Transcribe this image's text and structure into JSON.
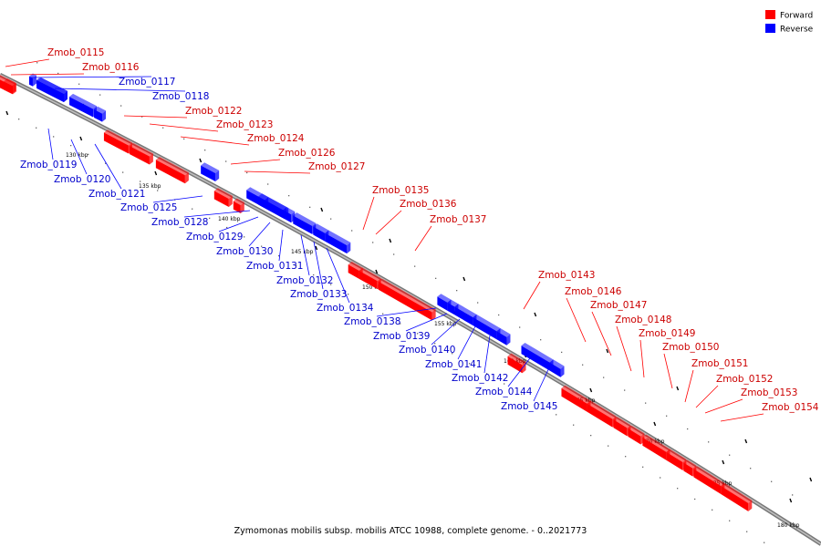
{
  "caption": "Zymomonas mobilis subsp. mobilis ATCC 10988, complete genome. - 0..2021773",
  "legend": [
    {
      "label": "Forward",
      "color": "#ff0000"
    },
    {
      "label": "Reverse",
      "color": "#0000ff"
    }
  ],
  "colors": {
    "forward": "#ff0000",
    "reverse": "#0000ff",
    "backbone": "#999999",
    "forward_label": "#cc0000",
    "reverse_label": "#0000cc"
  },
  "ticks": [
    {
      "label": "130 kbp"
    },
    {
      "label": "135 kbp"
    },
    {
      "label": "140 kbp"
    },
    {
      "label": "145 kbp"
    },
    {
      "label": "150 kbp"
    },
    {
      "label": "155 kbp"
    },
    {
      "label": "160 kbp"
    },
    {
      "label": "165 kbp"
    },
    {
      "label": "170 kbp"
    },
    {
      "label": "175 kbp"
    },
    {
      "label": "180 kbp"
    }
  ],
  "genes": [
    {
      "label": "Zmob_0115",
      "strand": "forward"
    },
    {
      "label": "Zmob_0116",
      "strand": "forward"
    },
    {
      "label": "Zmob_0117",
      "strand": "reverse"
    },
    {
      "label": "Zmob_0118",
      "strand": "reverse"
    },
    {
      "label": "Zmob_0119",
      "strand": "reverse"
    },
    {
      "label": "Zmob_0120",
      "strand": "reverse"
    },
    {
      "label": "Zmob_0121",
      "strand": "reverse"
    },
    {
      "label": "Zmob_0122",
      "strand": "forward"
    },
    {
      "label": "Zmob_0123",
      "strand": "forward"
    },
    {
      "label": "Zmob_0124",
      "strand": "forward"
    },
    {
      "label": "Zmob_0125",
      "strand": "reverse"
    },
    {
      "label": "Zmob_0126",
      "strand": "forward"
    },
    {
      "label": "Zmob_0127",
      "strand": "forward"
    },
    {
      "label": "Zmob_0128",
      "strand": "reverse"
    },
    {
      "label": "Zmob_0129",
      "strand": "reverse"
    },
    {
      "label": "Zmob_0130",
      "strand": "reverse"
    },
    {
      "label": "Zmob_0131",
      "strand": "reverse"
    },
    {
      "label": "Zmob_0132",
      "strand": "reverse"
    },
    {
      "label": "Zmob_0133",
      "strand": "reverse"
    },
    {
      "label": "Zmob_0134",
      "strand": "reverse"
    },
    {
      "label": "Zmob_0135",
      "strand": "forward"
    },
    {
      "label": "Zmob_0136",
      "strand": "forward"
    },
    {
      "label": "Zmob_0137",
      "strand": "forward"
    },
    {
      "label": "Zmob_0138",
      "strand": "reverse"
    },
    {
      "label": "Zmob_0139",
      "strand": "reverse"
    },
    {
      "label": "Zmob_0140",
      "strand": "reverse"
    },
    {
      "label": "Zmob_0141",
      "strand": "reverse"
    },
    {
      "label": "Zmob_0142",
      "strand": "reverse"
    },
    {
      "label": "Zmob_0143",
      "strand": "forward"
    },
    {
      "label": "Zmob_0144",
      "strand": "reverse"
    },
    {
      "label": "Zmob_0145",
      "strand": "reverse"
    },
    {
      "label": "Zmob_0146",
      "strand": "forward"
    },
    {
      "label": "Zmob_0147",
      "strand": "forward"
    },
    {
      "label": "Zmob_0148",
      "strand": "forward"
    },
    {
      "label": "Zmob_0149",
      "strand": "forward"
    },
    {
      "label": "Zmob_0150",
      "strand": "forward"
    },
    {
      "label": "Zmob_0151",
      "strand": "forward"
    },
    {
      "label": "Zmob_0152",
      "strand": "forward"
    },
    {
      "label": "Zmob_0153",
      "strand": "forward"
    },
    {
      "label": "Zmob_0154",
      "strand": "forward"
    }
  ]
}
